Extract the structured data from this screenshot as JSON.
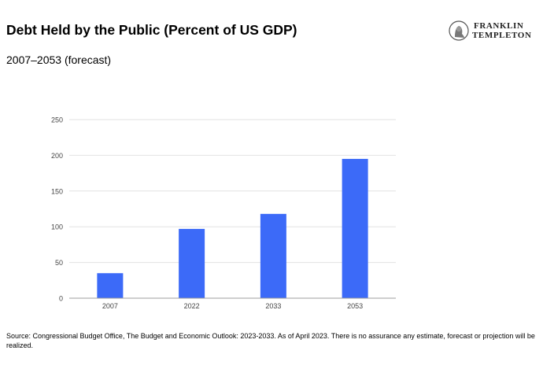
{
  "header": {
    "title": "Debt Held by the Public (Percent of US GDP)",
    "subtitle": "2007–2053 (forecast)"
  },
  "logo": {
    "line1": "FRANKLIN",
    "line2": "TEMPLETON"
  },
  "colors": {
    "bar": "#3c6af8",
    "grid": "#e2e2e2",
    "axis": "#9e9e9e",
    "tick_text": "#444444"
  },
  "chart_data": {
    "type": "bar",
    "title": "",
    "xlabel": "",
    "ylabel": "",
    "categories": [
      "2007",
      "2022",
      "2033",
      "2053"
    ],
    "series": [
      {
        "values": [
          35,
          97,
          118,
          195
        ]
      }
    ],
    "ylim": [
      0,
      250
    ],
    "yticks": [
      0,
      50,
      100,
      150,
      200,
      250
    ],
    "grid": true,
    "legend": "none"
  },
  "footer": {
    "source": "Source: Congressional Budget Office, The Budget and Economic Outlook: 2023-2033. As of April 2023. There is no assurance any estimate, forecast or projection will be realized."
  }
}
